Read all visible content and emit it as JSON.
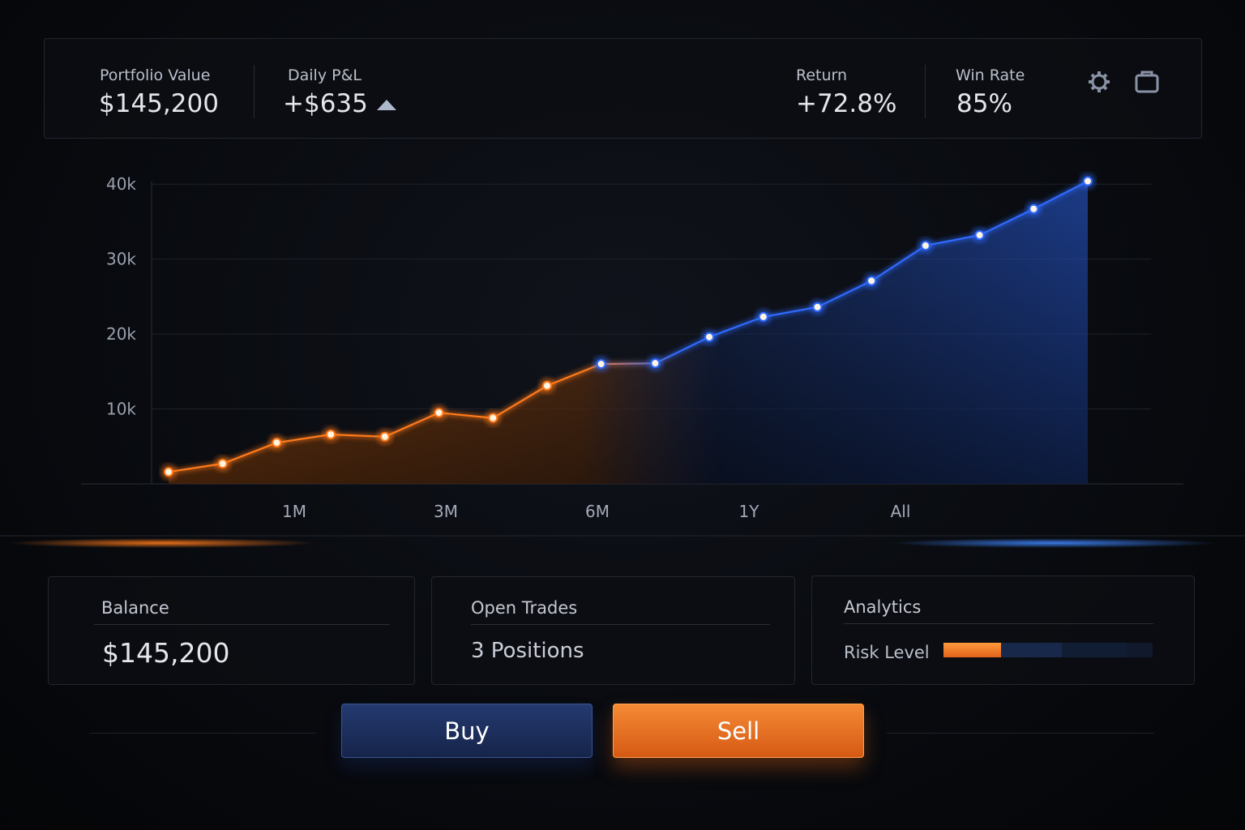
{
  "header": {
    "stats": [
      {
        "label": "Portfolio Value",
        "value": "$145,200"
      },
      {
        "label": "Daily P&L",
        "value": "+$635"
      },
      {
        "label": "Return",
        "value": "+72.8%"
      },
      {
        "label": "Win Rate",
        "value": "85%"
      }
    ]
  },
  "chart_data": {
    "type": "line",
    "categories": [
      null,
      null,
      null,
      null,
      null,
      null,
      null,
      null,
      null,
      null,
      null,
      null,
      null,
      null,
      null,
      null,
      null,
      null
    ],
    "values": [
      1600,
      2700,
      5500,
      6600,
      6300,
      9500,
      8800,
      13100,
      16000,
      16100,
      19600,
      22300,
      23600,
      27100,
      31800,
      33200,
      36700,
      40400
    ],
    "colors": [
      "#ff7a1a",
      "#2f6bff"
    ],
    "ylim": [
      0,
      41000
    ],
    "yticks": [
      {
        "value": 10000,
        "label": "10k"
      },
      {
        "value": 20000,
        "label": "20k"
      },
      {
        "value": 30000,
        "label": "30k"
      },
      {
        "value": 40000,
        "label": "40k"
      }
    ],
    "grid": true
  },
  "range_tabs": [
    "1M",
    "3M",
    "6M",
    "1Y",
    "All"
  ],
  "cards": {
    "balance": {
      "title": "Balance",
      "value": "$145,200"
    },
    "open_trades": {
      "title": "Open Trades",
      "value": "3 Positions"
    },
    "analytics": {
      "title": "Analytics",
      "risk_label": "Risk Level"
    }
  },
  "buttons": {
    "buy": "Buy",
    "sell": "Sell"
  }
}
